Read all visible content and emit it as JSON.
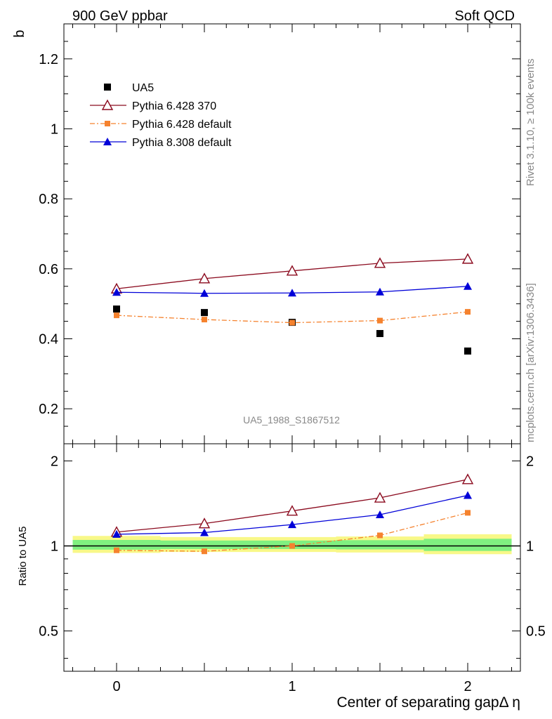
{
  "header": {
    "left": "900 GeV ppbar",
    "right": "Soft QCD"
  },
  "side": {
    "rivet": "Rivet 3.1.10, ≥ 100k events",
    "mcplots": "mcplots.cern.ch [arXiv:1306.3436]"
  },
  "analysis_id": "UA5_1988_S1867512",
  "chart_data": [
    {
      "type": "scatter",
      "panel": "main",
      "ylabel": "b",
      "xlim": [
        -0.3,
        2.3
      ],
      "ylim": [
        0.1,
        1.3
      ],
      "yticks": [
        0.2,
        0.4,
        0.6,
        0.8,
        1.0,
        1.2
      ],
      "ytick_labels": [
        "0.2",
        "0.4",
        "0.6",
        "0.8",
        "1",
        "1.2"
      ],
      "legend_position": "top-left",
      "series": [
        {
          "name": "UA5",
          "style": "data",
          "marker": "square",
          "color": "#000000",
          "x": [
            0,
            0.5,
            1,
            1.5,
            2
          ],
          "y": [
            0.485,
            0.475,
            0.447,
            0.415,
            0.365
          ]
        },
        {
          "name": "Pythia 6.428 370",
          "style": "solid",
          "marker": "triangle-open",
          "color": "#8b0a1e",
          "x": [
            0,
            0.5,
            1,
            1.5,
            2
          ],
          "y": [
            0.543,
            0.572,
            0.594,
            0.616,
            0.628
          ]
        },
        {
          "name": "Pythia 6.428 default",
          "style": "dashdot",
          "marker": "square-small",
          "color": "#f5822e",
          "x": [
            0,
            0.5,
            1,
            1.5,
            2
          ],
          "y": [
            0.467,
            0.455,
            0.446,
            0.452,
            0.477
          ]
        },
        {
          "name": "Pythia 8.308 default",
          "style": "solid",
          "marker": "triangle",
          "color": "#0000d8",
          "x": [
            0,
            0.5,
            1,
            1.5,
            2
          ],
          "y": [
            0.533,
            0.53,
            0.531,
            0.534,
            0.55
          ]
        }
      ]
    },
    {
      "type": "line",
      "panel": "ratio",
      "ylabel": "Ratio to UA5",
      "xlabel": "Center of separating gapΔ η",
      "xlim": [
        -0.3,
        2.3
      ],
      "ylim": [
        0.36,
        2.3
      ],
      "scale": "log",
      "xticks": [
        0,
        1,
        2
      ],
      "xtick_labels": [
        "0",
        "1",
        "2"
      ],
      "yticks": [
        0.5,
        1,
        2
      ],
      "ytick_labels": [
        "0.5",
        "1",
        "2"
      ],
      "band_color_inner": "#80f080",
      "band_color_outer": "#f8f888",
      "series": [
        {
          "name": "Pythia 6.428 370",
          "x": [
            0,
            0.5,
            1,
            1.5,
            2
          ],
          "y": [
            1.12,
            1.2,
            1.33,
            1.48,
            1.72
          ]
        },
        {
          "name": "Pythia 6.428 default",
          "x": [
            0,
            0.5,
            1,
            1.5,
            2
          ],
          "y": [
            0.965,
            0.957,
            1.0,
            1.09,
            1.31
          ]
        },
        {
          "name": "Pythia 8.308 default",
          "x": [
            0,
            0.5,
            1,
            1.5,
            2
          ],
          "y": [
            1.1,
            1.115,
            1.19,
            1.29,
            1.51
          ]
        }
      ]
    }
  ]
}
